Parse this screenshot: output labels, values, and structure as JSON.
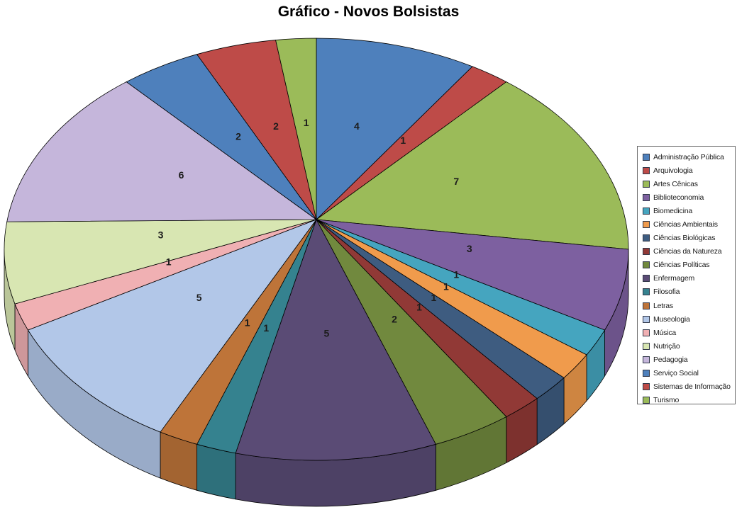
{
  "chart_data": {
    "type": "pie",
    "style": "3d",
    "title": "Gráfico - Novos Bolsistas",
    "total": 48,
    "start_angle_deg": 0,
    "direction": "clockwise",
    "data_labels": "value",
    "legend_position": "right",
    "categories": [
      "Administração Pública",
      "Arquivologia",
      "Artes Cênicas",
      "Biblioteconomia",
      "Biomedicina",
      "Ciências Ambientais",
      "Ciências Biológicas",
      "Ciências da Natureza",
      "Ciências Políticas",
      "Enfermagem",
      "Filosofia",
      "Letras",
      "Museologia",
      "Música",
      "Nutrição",
      "Pedagogia",
      "Serviço Social",
      "Sistemas de Informação",
      "Turismo"
    ],
    "values": [
      4,
      1,
      7,
      3,
      1,
      1,
      1,
      1,
      2,
      5,
      1,
      1,
      5,
      1,
      3,
      6,
      2,
      2,
      1
    ],
    "colors": [
      "#4E80BC",
      "#BE4B48",
      "#9BBB59",
      "#7D60A0",
      "#45A5BF",
      "#F09B4C",
      "#3E5C80",
      "#913936",
      "#71893E",
      "#5A4B75",
      "#35828F",
      "#BE7439",
      "#B2C7E8",
      "#F0B0B3",
      "#D8E6B2",
      "#C5B6DB",
      "#4E80BC",
      "#BE4B48",
      "#9BBB59"
    ]
  }
}
